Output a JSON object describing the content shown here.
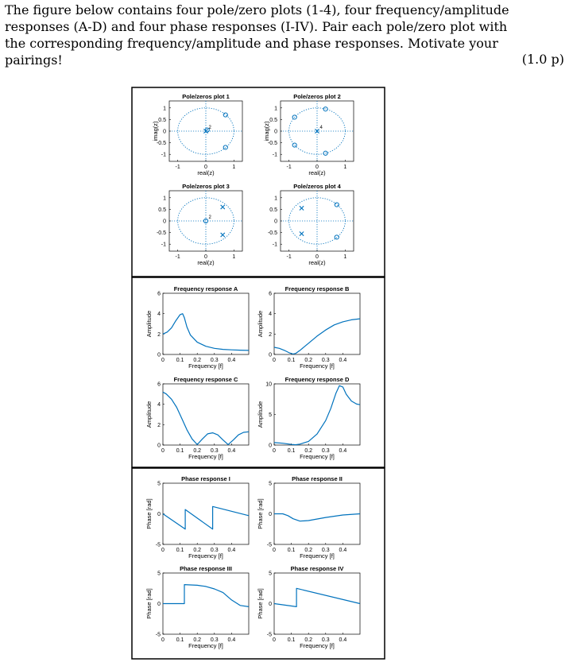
{
  "problem": {
    "text": "The figure below contains four pole/zero plots (1-4), four frequency/amplitude responses (A-D) and four phase responses (I-IV). Pair each pole/zero plot with the corresponding frequency/amplitude and phase responses. Motivate your pairings!",
    "points": "(1.0 p)"
  },
  "chart_data": [
    {
      "type": "scatter",
      "title": "Pole/zeros plot 1",
      "xlabel": "real(z)",
      "ylabel": "imag(z)",
      "xlim": [
        -1.3,
        1.3
      ],
      "ylim": [
        -1.3,
        1.3
      ],
      "xticks": [
        "-1",
        "0",
        "1"
      ],
      "yticks": [
        "1",
        "0.5",
        "0",
        "-0.5",
        "-1"
      ],
      "unit_circle": true,
      "poles": [
        [
          0.0,
          0.0
        ]
      ],
      "zeros": [
        [
          0.7,
          0.7
        ],
        [
          0.7,
          -0.7
        ],
        [
          0.05,
          0.05
        ]
      ],
      "multiplicity_labels": [
        {
          "at": [
            0.1,
            0.1
          ],
          "text": "2"
        }
      ]
    },
    {
      "type": "scatter",
      "title": "Pole/zeros plot 2",
      "xlabel": "real(z)",
      "ylabel": "imag(z)",
      "xlim": [
        -1.3,
        1.3
      ],
      "ylim": [
        -1.3,
        1.3
      ],
      "xticks": [
        "-1",
        "0",
        "1"
      ],
      "yticks": [
        "1",
        "0.5",
        "0",
        "-0.5",
        "-1"
      ],
      "unit_circle": true,
      "poles": [
        [
          0.0,
          0.0
        ]
      ],
      "zeros": [
        [
          0.3,
          0.95
        ],
        [
          -0.8,
          0.6
        ],
        [
          -0.8,
          -0.6
        ],
        [
          0.3,
          -0.95
        ]
      ],
      "multiplicity_labels": [
        {
          "at": [
            0.1,
            0.1
          ],
          "text": "4"
        }
      ]
    },
    {
      "type": "scatter",
      "title": "Pole/zeros plot 3",
      "xlabel": "real(z)",
      "ylabel": "",
      "xlim": [
        -1.3,
        1.3
      ],
      "ylim": [
        -1.3,
        1.3
      ],
      "xticks": [
        "-1",
        "0",
        "1"
      ],
      "yticks": [
        "1",
        "0.5",
        "0",
        "-0.5",
        "-1"
      ],
      "unit_circle": true,
      "poles": [
        [
          0.6,
          0.6
        ],
        [
          0.6,
          -0.6
        ]
      ],
      "zeros": [
        [
          0.0,
          0.0
        ]
      ],
      "multiplicity_labels": [
        {
          "at": [
            0.1,
            0.1
          ],
          "text": "2"
        }
      ]
    },
    {
      "type": "scatter",
      "title": "Pole/zeros plot 4",
      "xlabel": "real(z)",
      "ylabel": "",
      "xlim": [
        -1.3,
        1.3
      ],
      "ylim": [
        -1.3,
        1.3
      ],
      "xticks": [
        "-1",
        "0",
        "1"
      ],
      "yticks": [
        "1",
        "0.5",
        "0",
        "-0.5",
        "-1"
      ],
      "unit_circle": true,
      "poles": [
        [
          -0.55,
          0.55
        ],
        [
          -0.55,
          -0.55
        ]
      ],
      "zeros": [
        [
          0.7,
          0.7
        ],
        [
          0.7,
          -0.7
        ]
      ],
      "multiplicity_labels": []
    },
    {
      "type": "line",
      "title": "Frequency response A",
      "xlabel": "Frequency [f]",
      "ylabel": "Amplitude",
      "xlim": [
        0,
        0.5
      ],
      "ylim": [
        0,
        6
      ],
      "xticks": [
        "0",
        "0.1",
        "0.2",
        "0.3",
        "0.4"
      ],
      "yticks": [
        "6",
        "4",
        "2",
        "0"
      ],
      "x": [
        0,
        0.025,
        0.05,
        0.075,
        0.1,
        0.115,
        0.125,
        0.14,
        0.16,
        0.2,
        0.25,
        0.3,
        0.35,
        0.4,
        0.45,
        0.5
      ],
      "values": [
        2.0,
        2.2,
        2.6,
        3.3,
        3.9,
        4.0,
        3.6,
        2.7,
        1.9,
        1.2,
        0.8,
        0.6,
        0.5,
        0.45,
        0.42,
        0.4
      ]
    },
    {
      "type": "line",
      "title": "Frequency response B",
      "xlabel": "Frequency [f]",
      "ylabel": "Amplitude",
      "xlim": [
        0,
        0.5
      ],
      "ylim": [
        0,
        6
      ],
      "xticks": [
        "0",
        "0.1",
        "0.2",
        "0.3",
        "0.4"
      ],
      "yticks": [
        "6",
        "4",
        "2",
        "0"
      ],
      "x": [
        0,
        0.03,
        0.06,
        0.09,
        0.11,
        0.125,
        0.15,
        0.2,
        0.25,
        0.3,
        0.35,
        0.4,
        0.45,
        0.5
      ],
      "values": [
        0.7,
        0.6,
        0.4,
        0.15,
        0.05,
        0.1,
        0.4,
        1.1,
        1.8,
        2.4,
        2.9,
        3.2,
        3.4,
        3.5
      ]
    },
    {
      "type": "line",
      "title": "Frequency response C",
      "xlabel": "Frequency [f]",
      "ylabel": "Amplitude",
      "xlim": [
        0,
        0.5
      ],
      "ylim": [
        0,
        6
      ],
      "xticks": [
        "0",
        "0.1",
        "0.2",
        "0.3",
        "0.4"
      ],
      "yticks": [
        "6",
        "4",
        "2",
        "0"
      ],
      "x": [
        0,
        0.02,
        0.05,
        0.08,
        0.11,
        0.14,
        0.17,
        0.2,
        0.23,
        0.26,
        0.29,
        0.32,
        0.35,
        0.38,
        0.41,
        0.44,
        0.47,
        0.5
      ],
      "values": [
        5.2,
        5.0,
        4.5,
        3.7,
        2.6,
        1.5,
        0.6,
        0.05,
        0.6,
        1.1,
        1.2,
        1.0,
        0.5,
        0.05,
        0.5,
        1.0,
        1.25,
        1.3
      ]
    },
    {
      "type": "line",
      "title": "Frequency response D",
      "xlabel": "Frequency [f]",
      "ylabel": "Amplitude",
      "xlim": [
        0,
        0.5
      ],
      "ylim": [
        0,
        10
      ],
      "xticks": [
        "0",
        "0.1",
        "0.2",
        "0.3",
        "0.4"
      ],
      "yticks": [
        "10",
        "5",
        "0"
      ],
      "x": [
        0,
        0.05,
        0.1,
        0.125,
        0.15,
        0.2,
        0.25,
        0.3,
        0.33,
        0.36,
        0.38,
        0.4,
        0.42,
        0.45,
        0.48,
        0.5
      ],
      "values": [
        0.4,
        0.3,
        0.1,
        0.05,
        0.15,
        0.6,
        1.8,
        4.0,
        6.0,
        8.5,
        9.7,
        9.5,
        8.3,
        7.2,
        6.7,
        6.6
      ]
    },
    {
      "type": "line",
      "title": "Phase response I",
      "xlabel": "Frequency [f]",
      "ylabel": "Phase [rad]",
      "xlim": [
        0,
        0.5
      ],
      "ylim": [
        -5,
        5
      ],
      "xticks": [
        "0",
        "0.1",
        "0.2",
        "0.3",
        "0.4"
      ],
      "yticks": [
        "5",
        "0",
        "-5"
      ],
      "x": [
        0,
        0.13,
        0.13,
        0.29,
        0.29,
        0.5
      ],
      "values": [
        0.0,
        -2.5,
        0.7,
        -2.5,
        1.2,
        -0.3
      ]
    },
    {
      "type": "line",
      "title": "Phase response II",
      "xlabel": "Frequency [f]",
      "ylabel": "Phase [rad]",
      "xlim": [
        0,
        0.5
      ],
      "ylim": [
        -5,
        5
      ],
      "xticks": [
        "0",
        "0.1",
        "0.2",
        "0.3",
        "0.4"
      ],
      "yticks": [
        "5",
        "0",
        "-5"
      ],
      "x": [
        0,
        0.05,
        0.08,
        0.11,
        0.15,
        0.2,
        0.3,
        0.4,
        0.5
      ],
      "values": [
        0.0,
        0.0,
        -0.3,
        -0.8,
        -1.2,
        -1.1,
        -0.6,
        -0.2,
        0.0
      ]
    },
    {
      "type": "line",
      "title": "Phase response III",
      "xlabel": "Frequency [f]",
      "ylabel": "Phase [rad]",
      "xlim": [
        0,
        0.5
      ],
      "ylim": [
        -5,
        5
      ],
      "xticks": [
        "0",
        "0.1",
        "0.2",
        "0.3",
        "0.4"
      ],
      "yticks": [
        "5",
        "0",
        "-5"
      ],
      "x": [
        0,
        0.125,
        0.125,
        0.2,
        0.25,
        0.3,
        0.35,
        0.4,
        0.45,
        0.5
      ],
      "values": [
        0.0,
        0.0,
        3.1,
        3.0,
        2.8,
        2.4,
        1.8,
        0.6,
        -0.3,
        -0.5
      ]
    },
    {
      "type": "line",
      "title": "Phase response IV",
      "xlabel": "Frequency [f]",
      "ylabel": "Phase [rad]",
      "xlim": [
        0,
        0.5
      ],
      "ylim": [
        -5,
        5
      ],
      "xticks": [
        "0",
        "0.1",
        "0.2",
        "0.3",
        "0.4"
      ],
      "yticks": [
        "5",
        "0",
        "-5"
      ],
      "x": [
        0,
        0.13,
        0.13,
        0.5
      ],
      "values": [
        0.0,
        -0.5,
        2.5,
        0.0
      ]
    }
  ]
}
